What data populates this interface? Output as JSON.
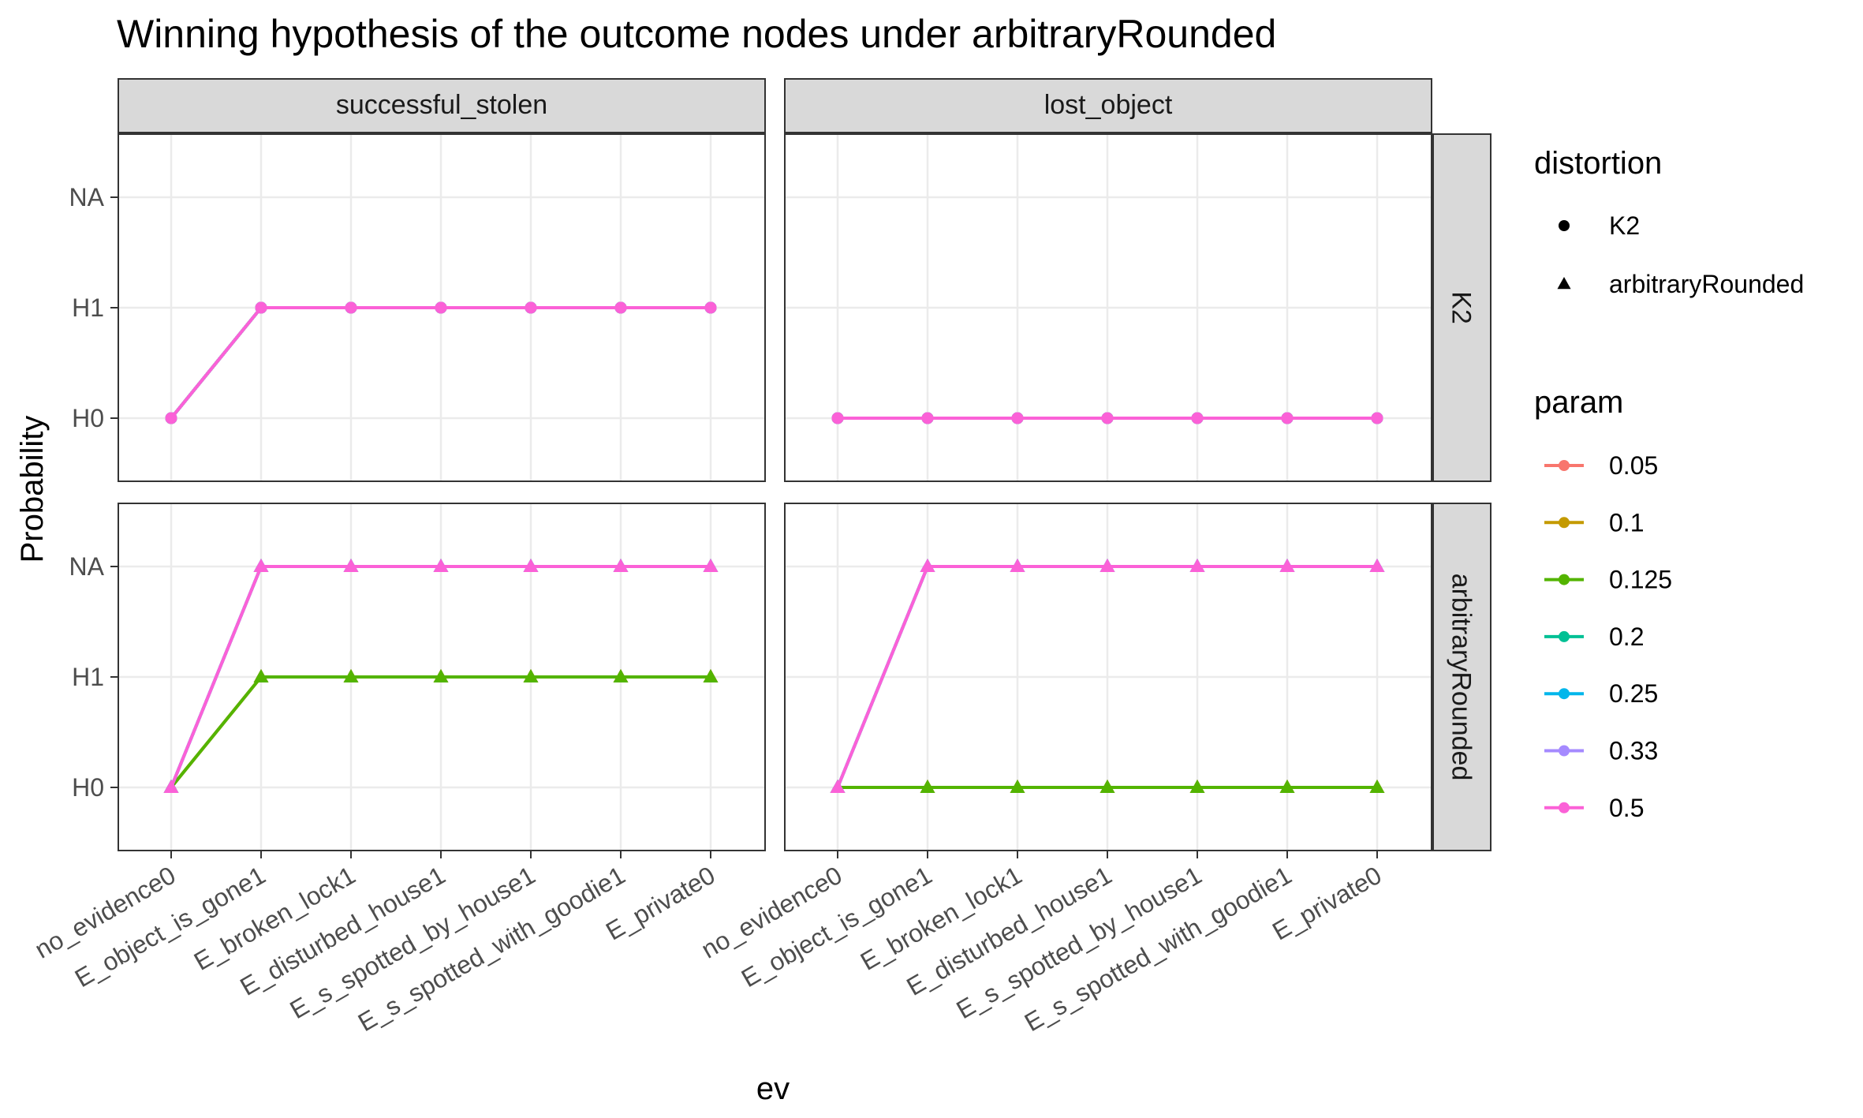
{
  "chart_data": {
    "type": "line",
    "title": "Winning hypothesis of the outcome nodes under arbitraryRounded",
    "xlabel": "ev",
    "ylabel": "Probability",
    "categories": [
      "no_evidence0",
      "E_object_is_gone1",
      "E_broken_lock1",
      "E_disturbed_house1",
      "E_s_spotted_by_house1",
      "E_s_spotted_with_goodie1",
      "E_private0"
    ],
    "y_levels": [
      "H0",
      "H1",
      "NA"
    ],
    "facet_columns": [
      "successful_stolen",
      "lost_object"
    ],
    "facet_rows": [
      "K2",
      "arbitraryRounded"
    ],
    "grid": true,
    "legend_position": "right",
    "legends": {
      "shape": {
        "title": "distortion",
        "items": [
          {
            "label": "K2",
            "shape": "circle"
          },
          {
            "label": "arbitraryRounded",
            "shape": "triangle"
          }
        ]
      },
      "color": {
        "title": "param",
        "items": [
          {
            "label": "0.05",
            "color": "#F8766D"
          },
          {
            "label": "0.1",
            "color": "#C49A00"
          },
          {
            "label": "0.125",
            "color": "#53B400"
          },
          {
            "label": "0.2",
            "color": "#00C094"
          },
          {
            "label": "0.25",
            "color": "#00B6EB"
          },
          {
            "label": "0.33",
            "color": "#A58AFF"
          },
          {
            "label": "0.5",
            "color": "#FB61D7"
          }
        ]
      }
    },
    "panels": [
      {
        "column": "successful_stolen",
        "row": "K2",
        "shape": "circle",
        "series": [
          {
            "param": "0.05",
            "values": [
              "H0",
              "H1",
              "H1",
              "H1",
              "H1",
              "H1",
              "H1"
            ]
          },
          {
            "param": "0.1",
            "values": [
              "H0",
              "H1",
              "H1",
              "H1",
              "H1",
              "H1",
              "H1"
            ]
          },
          {
            "param": "0.125",
            "values": [
              "H0",
              "H1",
              "H1",
              "H1",
              "H1",
              "H1",
              "H1"
            ]
          },
          {
            "param": "0.2",
            "values": [
              "H0",
              "H1",
              "H1",
              "H1",
              "H1",
              "H1",
              "H1"
            ]
          },
          {
            "param": "0.25",
            "values": [
              "H0",
              "H1",
              "H1",
              "H1",
              "H1",
              "H1",
              "H1"
            ]
          },
          {
            "param": "0.33",
            "values": [
              "H0",
              "H1",
              "H1",
              "H1",
              "H1",
              "H1",
              "H1"
            ]
          },
          {
            "param": "0.5",
            "values": [
              "H0",
              "H1",
              "H1",
              "H1",
              "H1",
              "H1",
              "H1"
            ]
          }
        ]
      },
      {
        "column": "lost_object",
        "row": "K2",
        "shape": "circle",
        "series": [
          {
            "param": "0.05",
            "values": [
              "H0",
              "H0",
              "H0",
              "H0",
              "H0",
              "H0",
              "H0"
            ]
          },
          {
            "param": "0.1",
            "values": [
              "H0",
              "H0",
              "H0",
              "H0",
              "H0",
              "H0",
              "H0"
            ]
          },
          {
            "param": "0.125",
            "values": [
              "H0",
              "H0",
              "H0",
              "H0",
              "H0",
              "H0",
              "H0"
            ]
          },
          {
            "param": "0.2",
            "values": [
              "H0",
              "H0",
              "H0",
              "H0",
              "H0",
              "H0",
              "H0"
            ]
          },
          {
            "param": "0.25",
            "values": [
              "H0",
              "H0",
              "H0",
              "H0",
              "H0",
              "H0",
              "H0"
            ]
          },
          {
            "param": "0.33",
            "values": [
              "H0",
              "H0",
              "H0",
              "H0",
              "H0",
              "H0",
              "H0"
            ]
          },
          {
            "param": "0.5",
            "values": [
              "H0",
              "H0",
              "H0",
              "H0",
              "H0",
              "H0",
              "H0"
            ]
          }
        ]
      },
      {
        "column": "successful_stolen",
        "row": "arbitraryRounded",
        "shape": "triangle",
        "series": [
          {
            "param": "0.05",
            "values": [
              "H0",
              "H1",
              "H1",
              "H1",
              "H1",
              "H1",
              "H1"
            ]
          },
          {
            "param": "0.1",
            "values": [
              "H0",
              "H1",
              "H1",
              "H1",
              "H1",
              "H1",
              "H1"
            ]
          },
          {
            "param": "0.125",
            "values": [
              "H0",
              "H1",
              "H1",
              "H1",
              "H1",
              "H1",
              "H1"
            ]
          },
          {
            "param": "0.2",
            "values": [
              "H0",
              "NA",
              "NA",
              "NA",
              "NA",
              "NA",
              "NA"
            ]
          },
          {
            "param": "0.25",
            "values": [
              "H0",
              "NA",
              "NA",
              "NA",
              "NA",
              "NA",
              "NA"
            ]
          },
          {
            "param": "0.33",
            "values": [
              "H0",
              "NA",
              "NA",
              "NA",
              "NA",
              "NA",
              "NA"
            ]
          },
          {
            "param": "0.5",
            "values": [
              "H0",
              "NA",
              "NA",
              "NA",
              "NA",
              "NA",
              "NA"
            ]
          }
        ]
      },
      {
        "column": "lost_object",
        "row": "arbitraryRounded",
        "shape": "triangle",
        "series": [
          {
            "param": "0.05",
            "values": [
              "H0",
              "H0",
              "H0",
              "H0",
              "H0",
              "H0",
              "H0"
            ]
          },
          {
            "param": "0.1",
            "values": [
              "H0",
              "H0",
              "H0",
              "H0",
              "H0",
              "H0",
              "H0"
            ]
          },
          {
            "param": "0.125",
            "values": [
              "H0",
              "H0",
              "H0",
              "H0",
              "H0",
              "H0",
              "H0"
            ]
          },
          {
            "param": "0.2",
            "values": [
              "H0",
              "NA",
              "NA",
              "NA",
              "NA",
              "NA",
              "NA"
            ]
          },
          {
            "param": "0.25",
            "values": [
              "H0",
              "NA",
              "NA",
              "NA",
              "NA",
              "NA",
              "NA"
            ]
          },
          {
            "param": "0.33",
            "values": [
              "H0",
              "NA",
              "NA",
              "NA",
              "NA",
              "NA",
              "NA"
            ]
          },
          {
            "param": "0.5",
            "values": [
              "H0",
              "NA",
              "NA",
              "NA",
              "NA",
              "NA",
              "NA"
            ]
          }
        ]
      }
    ]
  }
}
